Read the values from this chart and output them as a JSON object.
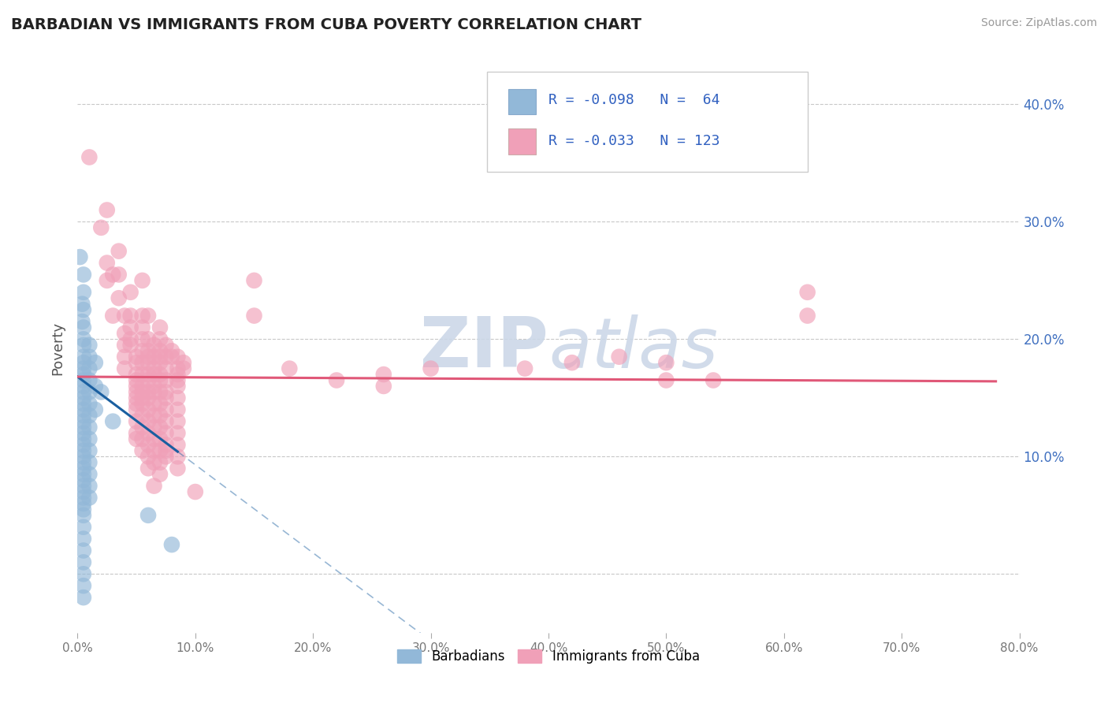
{
  "title": "BARBADIAN VS IMMIGRANTS FROM CUBA POVERTY CORRELATION CHART",
  "source": "Source: ZipAtlas.com",
  "ylabel": "Poverty",
  "xlim": [
    0.0,
    0.8
  ],
  "ylim": [
    -0.05,
    0.435
  ],
  "yticks": [
    0.0,
    0.1,
    0.2,
    0.3,
    0.4
  ],
  "ytick_labels": [
    "",
    "10.0%",
    "20.0%",
    "30.0%",
    "40.0%"
  ],
  "xticks": [
    0.0,
    0.1,
    0.2,
    0.3,
    0.4,
    0.5,
    0.6,
    0.7,
    0.8
  ],
  "xtick_labels": [
    "0.0%",
    "",
    "",
    "",
    "",
    "",
    "",
    "",
    "80.0%"
  ],
  "barbadian_color": "#92b8d8",
  "cuba_color": "#f0a0b8",
  "barbadian_R": -0.098,
  "barbadian_N": 64,
  "cuba_R": -0.033,
  "cuba_N": 123,
  "trend_blue_color": "#1a5fa0",
  "trend_pink_color": "#e05878",
  "legend_R_color": "#3060c0",
  "legend_box_color": "#ddddee",
  "watermark_color": "#ccd8e8",
  "barbadian_scatter": [
    [
      0.002,
      0.27
    ],
    [
      0.004,
      0.23
    ],
    [
      0.004,
      0.215
    ],
    [
      0.005,
      0.255
    ],
    [
      0.005,
      0.24
    ],
    [
      0.005,
      0.225
    ],
    [
      0.005,
      0.21
    ],
    [
      0.005,
      0.2
    ],
    [
      0.005,
      0.195
    ],
    [
      0.005,
      0.185
    ],
    [
      0.005,
      0.18
    ],
    [
      0.005,
      0.175
    ],
    [
      0.005,
      0.17
    ],
    [
      0.005,
      0.165
    ],
    [
      0.005,
      0.16
    ],
    [
      0.005,
      0.155
    ],
    [
      0.005,
      0.15
    ],
    [
      0.005,
      0.145
    ],
    [
      0.005,
      0.14
    ],
    [
      0.005,
      0.135
    ],
    [
      0.005,
      0.13
    ],
    [
      0.005,
      0.125
    ],
    [
      0.005,
      0.12
    ],
    [
      0.005,
      0.115
    ],
    [
      0.005,
      0.11
    ],
    [
      0.005,
      0.105
    ],
    [
      0.005,
      0.1
    ],
    [
      0.005,
      0.095
    ],
    [
      0.005,
      0.09
    ],
    [
      0.005,
      0.085
    ],
    [
      0.005,
      0.08
    ],
    [
      0.005,
      0.075
    ],
    [
      0.005,
      0.07
    ],
    [
      0.005,
      0.065
    ],
    [
      0.005,
      0.06
    ],
    [
      0.005,
      0.055
    ],
    [
      0.005,
      0.05
    ],
    [
      0.005,
      0.04
    ],
    [
      0.005,
      0.03
    ],
    [
      0.005,
      0.02
    ],
    [
      0.005,
      0.01
    ],
    [
      0.005,
      0.0
    ],
    [
      0.005,
      -0.01
    ],
    [
      0.005,
      -0.02
    ],
    [
      0.01,
      0.195
    ],
    [
      0.01,
      0.185
    ],
    [
      0.01,
      0.175
    ],
    [
      0.01,
      0.165
    ],
    [
      0.01,
      0.155
    ],
    [
      0.01,
      0.145
    ],
    [
      0.01,
      0.135
    ],
    [
      0.01,
      0.125
    ],
    [
      0.01,
      0.115
    ],
    [
      0.01,
      0.105
    ],
    [
      0.01,
      0.095
    ],
    [
      0.01,
      0.085
    ],
    [
      0.01,
      0.075
    ],
    [
      0.01,
      0.065
    ],
    [
      0.015,
      0.18
    ],
    [
      0.015,
      0.16
    ],
    [
      0.015,
      0.14
    ],
    [
      0.02,
      0.155
    ],
    [
      0.03,
      0.13
    ],
    [
      0.06,
      0.05
    ],
    [
      0.08,
      0.025
    ]
  ],
  "cuba_scatter": [
    [
      0.01,
      0.355
    ],
    [
      0.02,
      0.295
    ],
    [
      0.025,
      0.31
    ],
    [
      0.025,
      0.265
    ],
    [
      0.025,
      0.25
    ],
    [
      0.03,
      0.255
    ],
    [
      0.03,
      0.22
    ],
    [
      0.035,
      0.275
    ],
    [
      0.035,
      0.255
    ],
    [
      0.035,
      0.235
    ],
    [
      0.04,
      0.22
    ],
    [
      0.04,
      0.205
    ],
    [
      0.04,
      0.195
    ],
    [
      0.04,
      0.185
    ],
    [
      0.04,
      0.175
    ],
    [
      0.045,
      0.24
    ],
    [
      0.045,
      0.22
    ],
    [
      0.045,
      0.21
    ],
    [
      0.045,
      0.2
    ],
    [
      0.045,
      0.195
    ],
    [
      0.05,
      0.185
    ],
    [
      0.05,
      0.18
    ],
    [
      0.05,
      0.17
    ],
    [
      0.05,
      0.165
    ],
    [
      0.05,
      0.16
    ],
    [
      0.05,
      0.155
    ],
    [
      0.05,
      0.15
    ],
    [
      0.05,
      0.145
    ],
    [
      0.05,
      0.14
    ],
    [
      0.05,
      0.13
    ],
    [
      0.05,
      0.12
    ],
    [
      0.05,
      0.115
    ],
    [
      0.055,
      0.25
    ],
    [
      0.055,
      0.22
    ],
    [
      0.055,
      0.21
    ],
    [
      0.055,
      0.2
    ],
    [
      0.055,
      0.19
    ],
    [
      0.055,
      0.18
    ],
    [
      0.055,
      0.17
    ],
    [
      0.055,
      0.16
    ],
    [
      0.055,
      0.155
    ],
    [
      0.055,
      0.15
    ],
    [
      0.055,
      0.145
    ],
    [
      0.055,
      0.135
    ],
    [
      0.055,
      0.125
    ],
    [
      0.055,
      0.115
    ],
    [
      0.055,
      0.105
    ],
    [
      0.06,
      0.22
    ],
    [
      0.06,
      0.2
    ],
    [
      0.06,
      0.19
    ],
    [
      0.06,
      0.185
    ],
    [
      0.06,
      0.18
    ],
    [
      0.06,
      0.17
    ],
    [
      0.06,
      0.165
    ],
    [
      0.06,
      0.155
    ],
    [
      0.06,
      0.15
    ],
    [
      0.06,
      0.14
    ],
    [
      0.06,
      0.13
    ],
    [
      0.06,
      0.12
    ],
    [
      0.06,
      0.11
    ],
    [
      0.06,
      0.1
    ],
    [
      0.06,
      0.09
    ],
    [
      0.065,
      0.195
    ],
    [
      0.065,
      0.185
    ],
    [
      0.065,
      0.175
    ],
    [
      0.065,
      0.17
    ],
    [
      0.065,
      0.16
    ],
    [
      0.065,
      0.155
    ],
    [
      0.065,
      0.145
    ],
    [
      0.065,
      0.135
    ],
    [
      0.065,
      0.125
    ],
    [
      0.065,
      0.115
    ],
    [
      0.065,
      0.105
    ],
    [
      0.065,
      0.095
    ],
    [
      0.065,
      0.075
    ],
    [
      0.07,
      0.21
    ],
    [
      0.07,
      0.2
    ],
    [
      0.07,
      0.19
    ],
    [
      0.07,
      0.185
    ],
    [
      0.07,
      0.18
    ],
    [
      0.07,
      0.17
    ],
    [
      0.07,
      0.165
    ],
    [
      0.07,
      0.155
    ],
    [
      0.07,
      0.145
    ],
    [
      0.07,
      0.135
    ],
    [
      0.07,
      0.125
    ],
    [
      0.07,
      0.115
    ],
    [
      0.07,
      0.105
    ],
    [
      0.07,
      0.095
    ],
    [
      0.07,
      0.085
    ],
    [
      0.075,
      0.195
    ],
    [
      0.075,
      0.185
    ],
    [
      0.075,
      0.175
    ],
    [
      0.075,
      0.165
    ],
    [
      0.075,
      0.155
    ],
    [
      0.075,
      0.15
    ],
    [
      0.075,
      0.14
    ],
    [
      0.075,
      0.13
    ],
    [
      0.075,
      0.12
    ],
    [
      0.075,
      0.11
    ],
    [
      0.075,
      0.105
    ],
    [
      0.075,
      0.1
    ],
    [
      0.08,
      0.19
    ],
    [
      0.08,
      0.185
    ],
    [
      0.085,
      0.185
    ],
    [
      0.085,
      0.175
    ],
    [
      0.085,
      0.17
    ],
    [
      0.085,
      0.165
    ],
    [
      0.085,
      0.16
    ],
    [
      0.085,
      0.15
    ],
    [
      0.085,
      0.14
    ],
    [
      0.085,
      0.13
    ],
    [
      0.085,
      0.12
    ],
    [
      0.085,
      0.11
    ],
    [
      0.085,
      0.1
    ],
    [
      0.085,
      0.09
    ],
    [
      0.09,
      0.18
    ],
    [
      0.09,
      0.175
    ],
    [
      0.1,
      0.07
    ],
    [
      0.15,
      0.25
    ],
    [
      0.15,
      0.22
    ],
    [
      0.18,
      0.175
    ],
    [
      0.22,
      0.165
    ],
    [
      0.26,
      0.17
    ],
    [
      0.26,
      0.16
    ],
    [
      0.3,
      0.175
    ],
    [
      0.38,
      0.175
    ],
    [
      0.42,
      0.18
    ],
    [
      0.46,
      0.185
    ],
    [
      0.5,
      0.165
    ],
    [
      0.5,
      0.18
    ],
    [
      0.54,
      0.165
    ],
    [
      0.62,
      0.24
    ],
    [
      0.62,
      0.22
    ]
  ],
  "trend_blue_solid_end": 0.085,
  "trend_blue_intercept": 0.168,
  "trend_blue_slope": -0.75,
  "trend_pink_intercept": 0.168,
  "trend_pink_slope": -0.005
}
